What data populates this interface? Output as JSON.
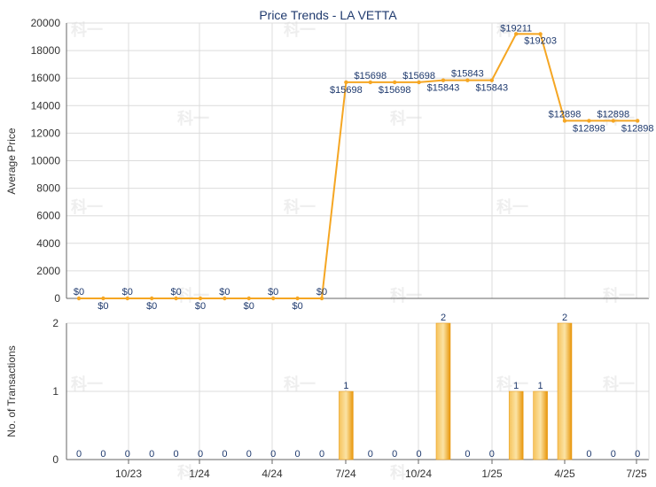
{
  "chart_data": {
    "type": "line+bar",
    "title": "Price Trends - LA VETTA",
    "x_tick_labels": [
      "10/23",
      "1/24",
      "4/24",
      "7/24",
      "10/24",
      "1/25",
      "4/25",
      "7/25"
    ],
    "price_panel": {
      "type": "line",
      "ylabel": "Average Price",
      "ylim": [
        0,
        20000
      ],
      "yticks": [
        0,
        2000,
        4000,
        6000,
        8000,
        10000,
        12000,
        14000,
        16000,
        18000,
        20000
      ],
      "values": [
        0,
        0,
        0,
        0,
        0,
        0,
        0,
        0,
        0,
        0,
        0,
        15698,
        15698,
        15698,
        15698,
        15843,
        15843,
        15843,
        19211,
        19203,
        12898,
        12898,
        12898,
        12898
      ],
      "labels": [
        "$0",
        "$0",
        "$0",
        "$0",
        "$0",
        "$0",
        "$0",
        "$0",
        "$0",
        "$0",
        "$0",
        "$15698",
        "$15698",
        "$15698",
        "$15698",
        "$15843",
        "$15843",
        "$15843",
        "$19211",
        "$19203",
        "$12898",
        "$12898",
        "$12898",
        "$12898"
      ],
      "color": "#f5a623"
    },
    "transactions_panel": {
      "type": "bar",
      "ylabel": "No. of Transactions",
      "ylim": [
        0,
        2
      ],
      "yticks": [
        0,
        1,
        2
      ],
      "values": [
        0,
        0,
        0,
        0,
        0,
        0,
        0,
        0,
        0,
        0,
        0,
        1,
        0,
        0,
        0,
        2,
        0,
        0,
        1,
        1,
        2,
        0,
        0,
        0
      ],
      "color": "#f5a623"
    },
    "watermark": "科一"
  }
}
